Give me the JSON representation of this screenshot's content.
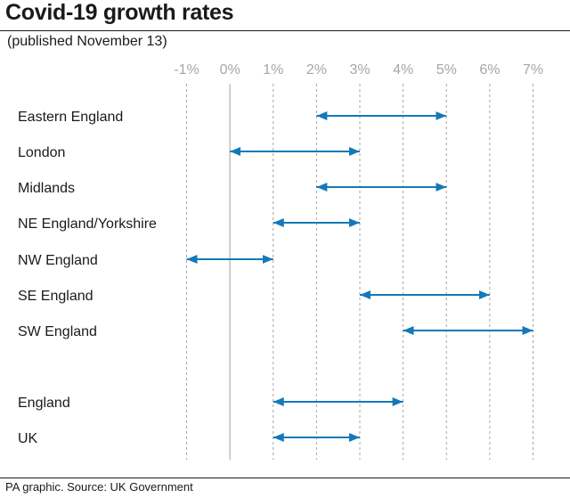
{
  "title": "Covid-19 growth rates",
  "subtitle": "(published November 13)",
  "source": "PA graphic. Source: UK Government",
  "colors": {
    "arrow": "#1479b8",
    "grid_zero": "#bfbfbf",
    "grid": "#a6a6a6",
    "tick_text": "#a6a6a6"
  },
  "chart_data": {
    "type": "range",
    "title": "Covid-19 growth rates",
    "subtitle": "(published November 13)",
    "x_ticks": [
      "-1%",
      "0%",
      "1%",
      "2%",
      "3%",
      "4%",
      "5%",
      "6%",
      "7%"
    ],
    "xlim": [
      -1,
      7
    ],
    "x_unit": "%",
    "grid": true,
    "categories": [
      "Eastern England",
      "London",
      "Midlands",
      "NE England/Yorkshire",
      "NW England",
      "SE England",
      "SW England",
      "England",
      "UK"
    ],
    "ranges": [
      {
        "label": "Eastern England",
        "low": 2,
        "high": 5
      },
      {
        "label": "London",
        "low": 0,
        "high": 3
      },
      {
        "label": "Midlands",
        "low": 2,
        "high": 5
      },
      {
        "label": "NE England/Yorkshire",
        "low": 1,
        "high": 3
      },
      {
        "label": "NW England",
        "low": -1,
        "high": 1
      },
      {
        "label": "SE England",
        "low": 3,
        "high": 6
      },
      {
        "label": "SW England",
        "low": 4,
        "high": 7
      },
      {
        "label": "England",
        "low": 1,
        "high": 4
      },
      {
        "label": "UK",
        "low": 1,
        "high": 3
      }
    ]
  }
}
